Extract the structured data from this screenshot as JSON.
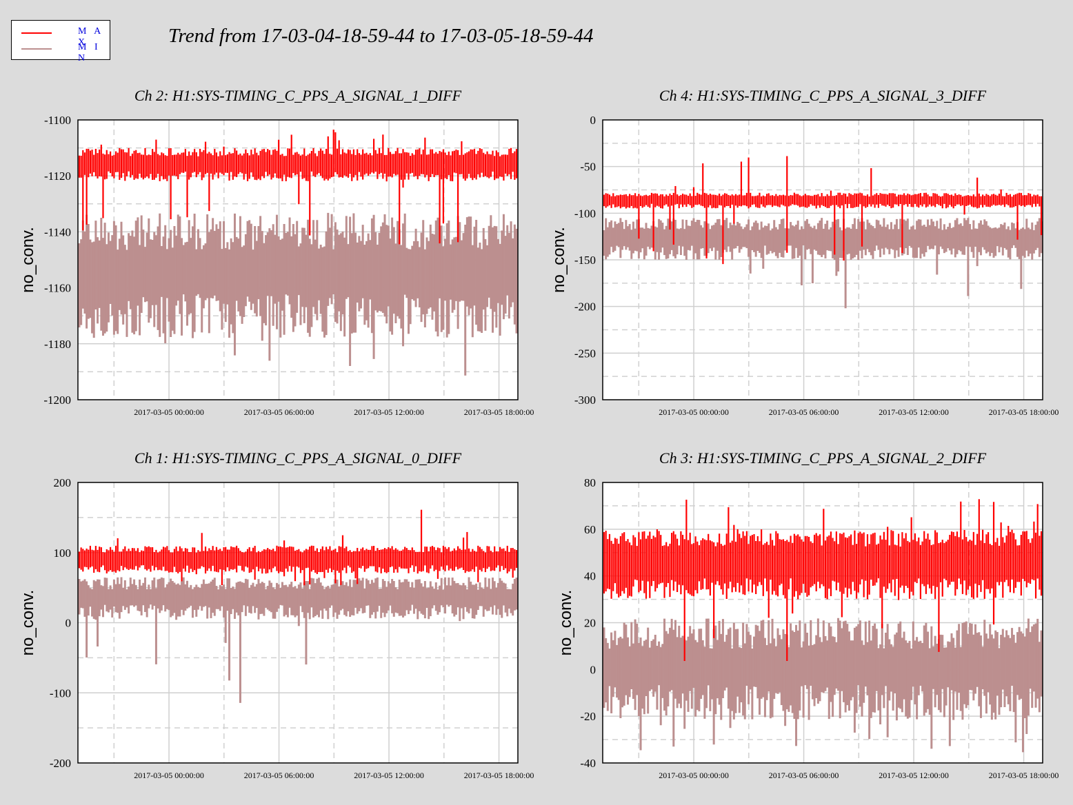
{
  "title": "Trend from 17-03-04-18-59-44 to 17-03-05-18-59-44",
  "legend": [
    {
      "label": "M A X",
      "color": "#ff0000"
    },
    {
      "label": "M I N",
      "color": "#bc8f8f"
    }
  ],
  "colors": {
    "max": "#ff0000",
    "min": "#bc8f8f",
    "background": "#dcdcdc",
    "plot_bg": "#ffffff"
  },
  "chart_data": [
    {
      "type": "line",
      "title": "Ch 2: H1:SYS-TIMING_C_PPS_A_SIGNAL_1_DIFF",
      "ylabel": "no_conv.",
      "ylim": [
        -1200,
        -1100
      ],
      "yticks": [
        "-1100",
        "-1120",
        "-1140",
        "-1160",
        "-1180",
        "-1200"
      ],
      "xticks": [
        "2017-03-05 00:00:00",
        "2017-03-05 06:00:00",
        "2017-03-05 12:00:00",
        "2017-03-05 18:00:00"
      ],
      "grid": true,
      "series": [
        {
          "name": "MAX",
          "typical": [
            -1122,
            -1110
          ],
          "excursion": [
            -1145,
            -1103
          ]
        },
        {
          "name": "MIN",
          "typical": [
            -1178,
            -1133
          ],
          "excursion": [
            -1192,
            -1140
          ]
        }
      ]
    },
    {
      "type": "line",
      "title": "Ch 4: H1:SYS-TIMING_C_PPS_A_SIGNAL_3_DIFF",
      "ylabel": "no_conv.",
      "ylim": [
        -300,
        0
      ],
      "yticks": [
        "0",
        "-50",
        "-100",
        "-150",
        "-200",
        "-250",
        "-300"
      ],
      "xticks": [
        "2017-03-05 00:00:00",
        "2017-03-05 06:00:00",
        "2017-03-05 12:00:00",
        "2017-03-05 18:00:00"
      ],
      "grid": true,
      "series": [
        {
          "name": "MAX",
          "typical": [
            -95,
            -78
          ],
          "excursion": [
            -155,
            -38
          ]
        },
        {
          "name": "MIN",
          "typical": [
            -150,
            -105
          ],
          "excursion": [
            -202,
            -65
          ]
        }
      ]
    },
    {
      "type": "line",
      "title": "Ch 1: H1:SYS-TIMING_C_PPS_A_SIGNAL_0_DIFF",
      "ylabel": "no_conv.",
      "ylim": [
        -200,
        200
      ],
      "yticks": [
        "200",
        "100",
        "0",
        "-100",
        "-200"
      ],
      "xticks": [
        "2017-03-05 00:00:00",
        "2017-03-05 06:00:00",
        "2017-03-05 12:00:00",
        "2017-03-05 18:00:00"
      ],
      "grid": true,
      "series": [
        {
          "name": "MAX",
          "typical": [
            70,
            110
          ],
          "excursion": [
            50,
            165
          ]
        },
        {
          "name": "MIN",
          "typical": [
            5,
            65
          ],
          "excursion": [
            -128,
            70
          ]
        }
      ]
    },
    {
      "type": "line",
      "title": "Ch 3: H1:SYS-TIMING_C_PPS_A_SIGNAL_2_DIFF",
      "ylabel": "no_conv.",
      "ylim": [
        -40,
        80
      ],
      "yticks": [
        "80",
        "60",
        "40",
        "20",
        "0",
        "-20",
        "-40"
      ],
      "xticks": [
        "2017-03-05 00:00:00",
        "2017-03-05 06:00:00",
        "2017-03-05 12:00:00",
        "2017-03-05 18:00:00"
      ],
      "grid": true,
      "series": [
        {
          "name": "MAX",
          "typical": [
            30,
            60
          ],
          "excursion": [
            0,
            75
          ]
        },
        {
          "name": "MIN",
          "typical": [
            -22,
            22
          ],
          "excursion": [
            -37,
            30
          ]
        }
      ]
    }
  ]
}
